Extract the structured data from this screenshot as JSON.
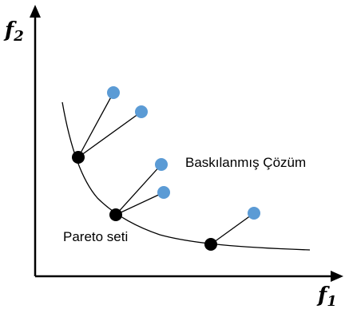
{
  "axes": {
    "x_label": {
      "base": "f",
      "sub": "1"
    },
    "y_label": {
      "base": "f",
      "sub": "2"
    }
  },
  "annotations": {
    "dominated": "Baskılanmış Çözüm",
    "pareto": "Pareto seti"
  },
  "colors": {
    "pareto_point": "#000000",
    "dominated_point": "#5b9bd5",
    "line": "#000000"
  }
}
